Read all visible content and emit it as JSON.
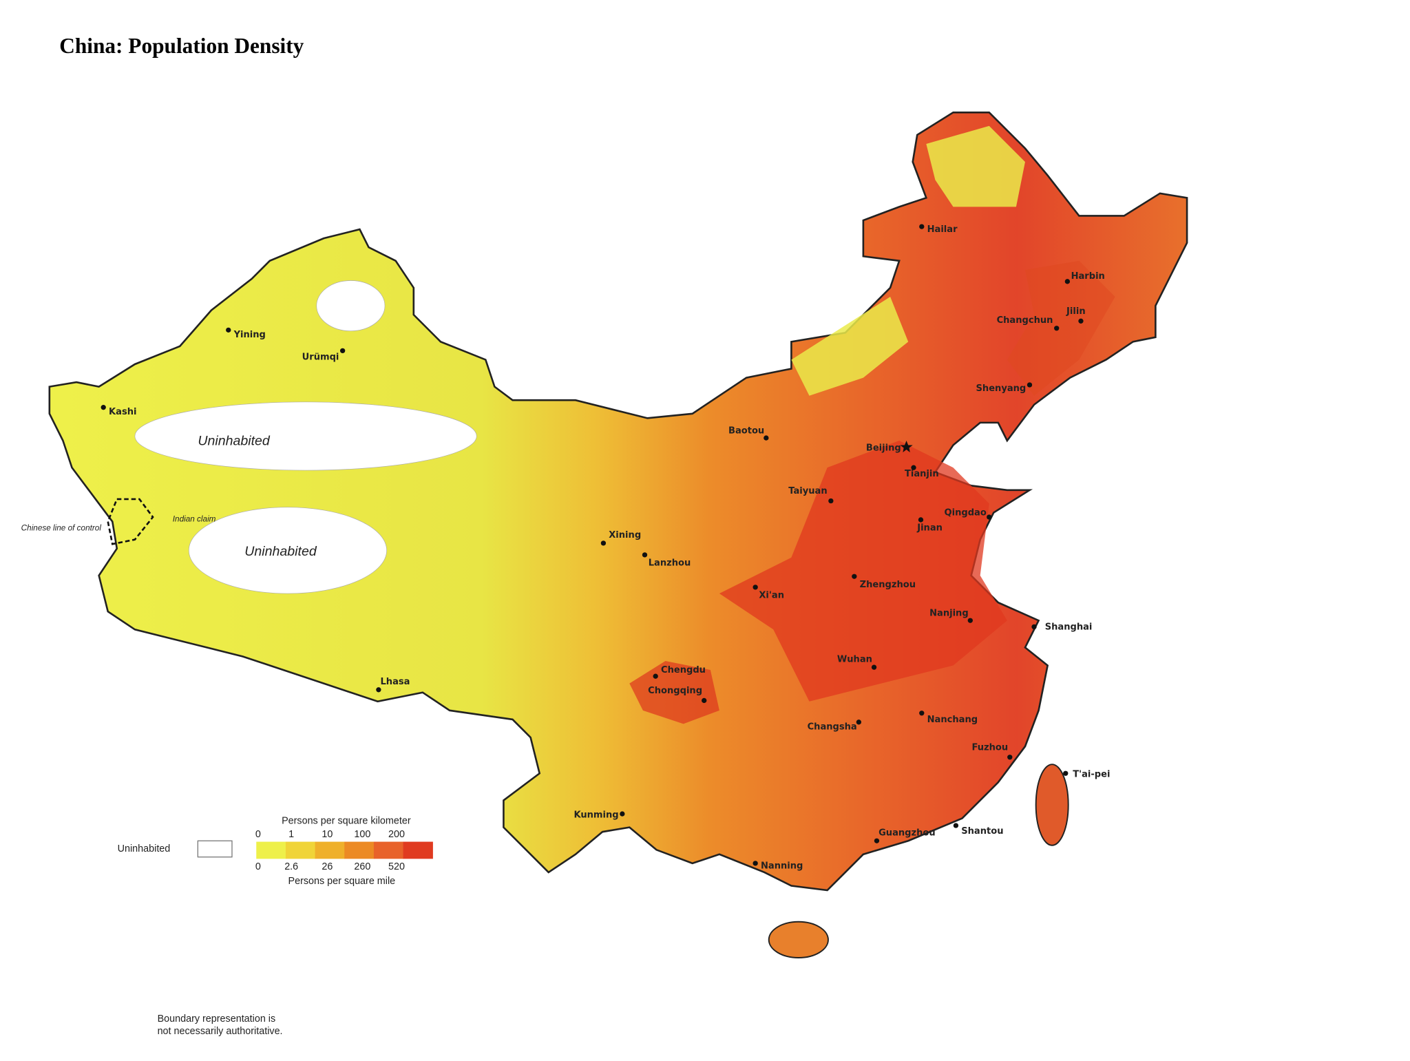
{
  "title": "China: Population Density",
  "map": {
    "regions": [
      "Uninhabited",
      "Uninhabited"
    ],
    "border_labels": [
      "Chinese line of control",
      "Indian claim"
    ],
    "cities": [
      "Hailar",
      "Harbin",
      "Jilin",
      "Changchun",
      "Shenyang",
      "Beijing",
      "Tianjin",
      "Taiyuan",
      "Qingdao",
      "Jinan",
      "Baotou",
      "Xining",
      "Lanzhou",
      "Xi'an",
      "Zhengzhou",
      "Nanjing",
      "Shanghai",
      "Wuhan",
      "Chengdu",
      "Chongqing",
      "Changsha",
      "Nanchang",
      "Fuzhou",
      "T'ai-pei",
      "Kunming",
      "Guangzhou",
      "Shantou",
      "Nanning",
      "Lhasa",
      "Kashi",
      "Yining",
      "Urümqi"
    ]
  },
  "legend": {
    "uninhabited": "Uninhabited",
    "km_title": "Persons per square kilometer",
    "km_ticks": [
      0,
      1,
      10,
      100,
      200
    ],
    "mile_ticks": [
      0,
      2.6,
      26,
      260,
      520
    ],
    "mile_title": "Persons per square mile"
  },
  "note": [
    "Boundary representation is",
    "not necessarily authoritative."
  ]
}
